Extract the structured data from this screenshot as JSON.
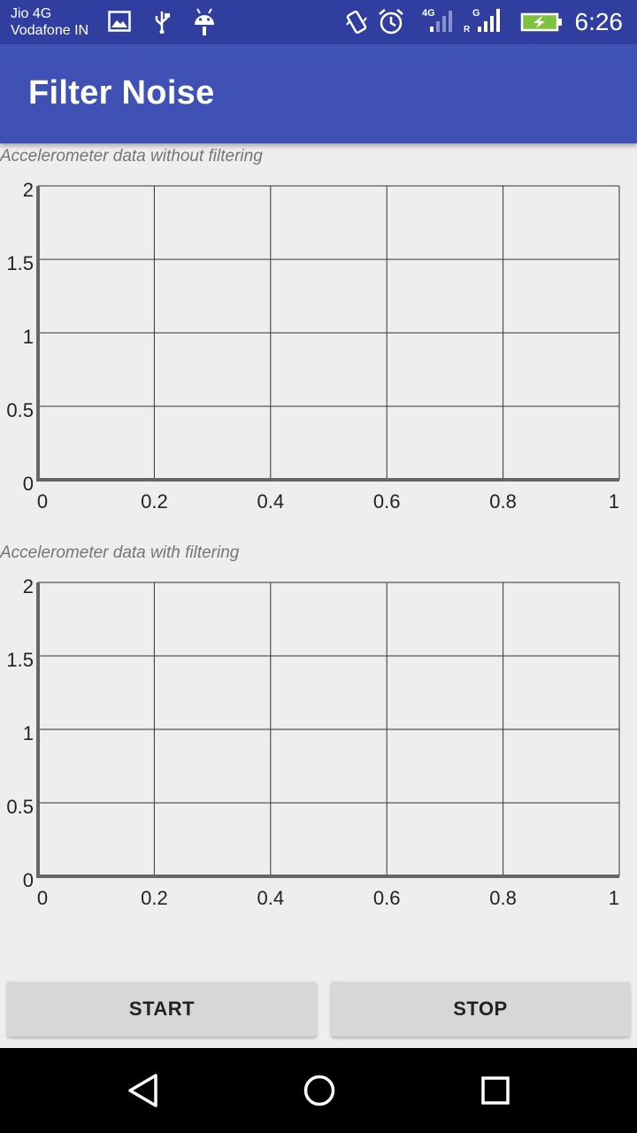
{
  "status_bar": {
    "carrier_1": "Jio 4G",
    "carrier_2": "Vodafone IN",
    "network_1": "4G",
    "network_2": "G",
    "roaming": "R",
    "time": "6:26"
  },
  "app_bar": {
    "title": "Filter Noise"
  },
  "charts": [
    {
      "label": "Accelerometer data without filtering",
      "x_ticks": [
        "0",
        "0.2",
        "0.4",
        "0.6",
        "0.8",
        "1"
      ],
      "y_ticks": [
        "0",
        "0.5",
        "1",
        "1.5",
        "2"
      ]
    },
    {
      "label": "Accelerometer data with filtering",
      "x_ticks": [
        "0",
        "0.2",
        "0.4",
        "0.6",
        "0.8",
        "1"
      ],
      "y_ticks": [
        "0",
        "0.5",
        "1",
        "1.5",
        "2"
      ]
    }
  ],
  "chart_data": [
    {
      "type": "line",
      "x": [],
      "series": [],
      "xlim": [
        0,
        1
      ],
      "ylim": [
        0,
        2
      ],
      "grid": true
    },
    {
      "type": "line",
      "x": [],
      "series": [],
      "xlim": [
        0,
        1
      ],
      "ylim": [
        0,
        2
      ],
      "grid": true
    }
  ],
  "buttons": {
    "start": "START",
    "stop": "STOP"
  },
  "colors": {
    "status_bar": "#303f9f",
    "app_bar": "#3f51b5",
    "background": "#eeeeee",
    "button": "#d6d7d7"
  },
  "icons": [
    "image-icon",
    "usb-icon",
    "android-icon",
    "vibrate-icon",
    "alarm-icon",
    "signal-icon",
    "battery-charging-icon",
    "back-icon",
    "home-icon",
    "recents-icon"
  ]
}
